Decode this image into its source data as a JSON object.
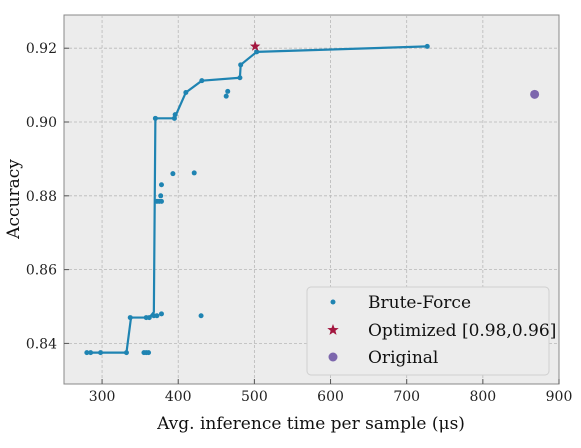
{
  "chart_data": {
    "type": "scatter",
    "xlabel": "Avg. inference time per sample (μs)",
    "ylabel": "Accuracy",
    "xlim": [
      250,
      900
    ],
    "ylim": [
      0.829,
      0.929
    ],
    "xticks": [
      300,
      400,
      500,
      600,
      700,
      800,
      900
    ],
    "yticks": [
      0.84,
      0.86,
      0.88,
      0.9,
      0.92
    ],
    "grid": true,
    "legend_position": "bottom-right",
    "colors": {
      "brute_force": "#1f84b2",
      "optimized": "#a3163f",
      "original": "#7d67ad",
      "background": "#ececec",
      "grid": "#b8b8b8"
    },
    "series": [
      {
        "name": "Brute-Force",
        "kind": "scatter",
        "points": [
          [
            280,
            0.8375
          ],
          [
            285,
            0.8375
          ],
          [
            298,
            0.8375
          ],
          [
            332,
            0.8375
          ],
          [
            355,
            0.8375
          ],
          [
            358,
            0.8375
          ],
          [
            361,
            0.8375
          ],
          [
            337,
            0.847
          ],
          [
            358,
            0.847
          ],
          [
            362,
            0.847
          ],
          [
            368,
            0.8475
          ],
          [
            372,
            0.8475
          ],
          [
            378,
            0.848
          ],
          [
            430,
            0.8475
          ],
          [
            372,
            0.8785
          ],
          [
            375,
            0.8785
          ],
          [
            378,
            0.8785
          ],
          [
            377,
            0.88
          ],
          [
            378,
            0.883
          ],
          [
            393,
            0.886
          ],
          [
            421,
            0.8862
          ],
          [
            370,
            0.901
          ],
          [
            395,
            0.901
          ],
          [
            396,
            0.902
          ],
          [
            410,
            0.908
          ],
          [
            431,
            0.9112
          ],
          [
            463,
            0.907
          ],
          [
            465,
            0.9083
          ],
          [
            481,
            0.912
          ],
          [
            482,
            0.9155
          ],
          [
            503,
            0.919
          ],
          [
            727,
            0.9205
          ]
        ]
      },
      {
        "name": "Pareto frontier",
        "kind": "line",
        "points": [
          [
            280,
            0.8375
          ],
          [
            332,
            0.8375
          ],
          [
            338,
            0.847
          ],
          [
            362,
            0.847
          ],
          [
            368,
            0.8485
          ],
          [
            370,
            0.901
          ],
          [
            395,
            0.901
          ],
          [
            410,
            0.908
          ],
          [
            431,
            0.9112
          ],
          [
            481,
            0.912
          ],
          [
            482,
            0.9155
          ],
          [
            503,
            0.919
          ],
          [
            727,
            0.9205
          ]
        ]
      },
      {
        "name": "Optimized [0.98,0.96]",
        "kind": "star",
        "points": [
          [
            501,
            0.9205
          ]
        ]
      },
      {
        "name": "Original",
        "kind": "dot",
        "points": [
          [
            868,
            0.9075
          ]
        ]
      }
    ],
    "legend": {
      "brute_force": "Brute-Force",
      "optimized": "Optimized [0.98,0.96]",
      "original": "Original"
    }
  }
}
